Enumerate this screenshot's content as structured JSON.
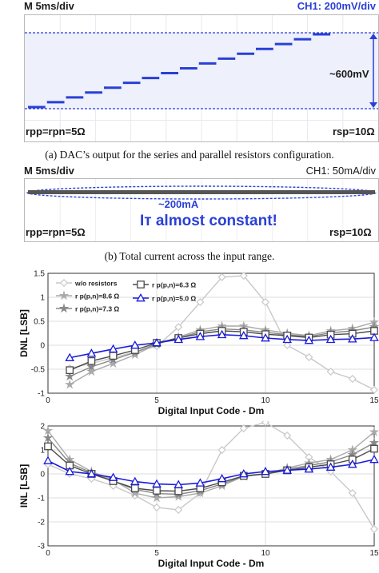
{
  "scope_a": {
    "time_div": "M 5ms/div",
    "channel": "CH1: 200mV/div",
    "annotation": "~600mV",
    "left_label": "rpp=rpn=5Ω",
    "right_label": "rsp=10Ω"
  },
  "caption_a": "(a) DAC’s output for the series and parallel resistors configuration.",
  "scope_b": {
    "time_div": "M 5ms/div",
    "channel": "CH1: 50mA/div",
    "annotation": "~200mA",
    "message": "Iт almost constant!",
    "left_label": "rpp=rpn=5Ω",
    "right_label": "rsp=10Ω"
  },
  "caption_b": "(b) Total current across the input range.",
  "colors": {
    "wo": "#c8c8c8",
    "r86": "#a9a9a9",
    "r73": "#888888",
    "r63": "#4a4a4a",
    "r50": "#1a1adc",
    "scope_blue": "#2a3fd6"
  },
  "chart_data": [
    {
      "type": "line",
      "title": "",
      "xlabel": "Digital Input Code - Dm",
      "ylabel": "DNL [LSB]",
      "xlim": [
        0,
        15
      ],
      "ylim": [
        -1,
        1.5
      ],
      "xticks": [
        "0",
        "5",
        "10",
        "15"
      ],
      "yticks": [
        "-1",
        "-0.5",
        "0",
        "0.5",
        "1",
        "1.5"
      ],
      "grid": true,
      "legend_position": "top-left",
      "x": [
        1,
        2,
        3,
        4,
        5,
        6,
        7,
        8,
        9,
        10,
        11,
        12,
        13,
        14,
        15
      ],
      "series": [
        {
          "name": "w/o resistors",
          "marker": "diamond",
          "values": [
            -0.48,
            -0.38,
            -0.26,
            -0.14,
            -0.02,
            0.38,
            0.9,
            1.42,
            1.45,
            0.9,
            0.0,
            -0.25,
            -0.55,
            -0.7,
            -0.93
          ]
        },
        {
          "name": "r p(p,n)=8.6 Ω",
          "marker": "star",
          "values": [
            -0.82,
            -0.55,
            -0.38,
            -0.2,
            0.02,
            0.17,
            0.32,
            0.4,
            0.4,
            0.32,
            0.25,
            0.2,
            0.3,
            0.35,
            0.48
          ]
        },
        {
          "name": "r p(p,n)=7.3 Ω",
          "marker": "star",
          "values": [
            -0.65,
            -0.45,
            -0.3,
            -0.15,
            0.03,
            0.15,
            0.28,
            0.34,
            0.32,
            0.27,
            0.22,
            0.18,
            0.26,
            0.3,
            0.38
          ]
        },
        {
          "name": "r p(p,n)=6.3 Ω",
          "marker": "square",
          "values": [
            -0.52,
            -0.33,
            -0.22,
            -0.1,
            0.05,
            0.15,
            0.24,
            0.3,
            0.28,
            0.23,
            0.2,
            0.16,
            0.22,
            0.24,
            0.3
          ]
        },
        {
          "name": "r p(p,n)=5.0 Ω",
          "marker": "triangle",
          "values": [
            -0.26,
            -0.17,
            -0.08,
            0.0,
            0.05,
            0.12,
            0.18,
            0.22,
            0.2,
            0.15,
            0.12,
            0.1,
            0.12,
            0.13,
            0.16
          ]
        }
      ]
    },
    {
      "type": "line",
      "title": "",
      "xlabel": "Digital Input Code - Dm",
      "ylabel": "INL [LSB]",
      "xlim": [
        0,
        15
      ],
      "ylim": [
        -3,
        2
      ],
      "xticks": [
        "0",
        "5",
        "10",
        "15"
      ],
      "yticks": [
        "-3",
        "-2",
        "-1",
        "0",
        "1",
        "2"
      ],
      "grid": true,
      "x": [
        0,
        1,
        2,
        3,
        4,
        5,
        6,
        7,
        8,
        9,
        10,
        11,
        12,
        13,
        14,
        15
      ],
      "series": [
        {
          "name": "w/o resistors",
          "marker": "diamond",
          "values": [
            0.4,
            0.0,
            -0.2,
            -0.5,
            -0.9,
            -1.4,
            -1.5,
            -0.8,
            1.0,
            1.9,
            2.15,
            1.6,
            0.7,
            0.1,
            -0.8,
            -2.3
          ]
        },
        {
          "name": "r p(p,n)=8.6 Ω",
          "marker": "star",
          "values": [
            1.8,
            0.6,
            0.1,
            -0.25,
            -0.8,
            -1.0,
            -0.95,
            -0.8,
            -0.5,
            -0.1,
            0.0,
            0.25,
            0.45,
            0.6,
            1.0,
            1.75
          ]
        },
        {
          "name": "r p(p,n)=7.3 Ω",
          "marker": "star",
          "values": [
            1.5,
            0.45,
            0.05,
            -0.3,
            -0.65,
            -0.82,
            -0.85,
            -0.7,
            -0.42,
            -0.1,
            0.0,
            0.2,
            0.35,
            0.5,
            0.8,
            1.3
          ]
        },
        {
          "name": "r p(p,n)=6.3 Ω",
          "marker": "square",
          "values": [
            1.15,
            0.35,
            0.0,
            -0.3,
            -0.6,
            -0.7,
            -0.72,
            -0.6,
            -0.35,
            -0.08,
            0.0,
            0.15,
            0.28,
            0.4,
            0.6,
            1.05
          ]
        },
        {
          "name": "r p(p,n)=5.0 Ω",
          "marker": "triangle",
          "values": [
            0.55,
            0.1,
            0.0,
            -0.15,
            -0.32,
            -0.42,
            -0.45,
            -0.38,
            -0.2,
            0.0,
            0.1,
            0.15,
            0.2,
            0.28,
            0.4,
            0.6
          ]
        }
      ]
    }
  ]
}
